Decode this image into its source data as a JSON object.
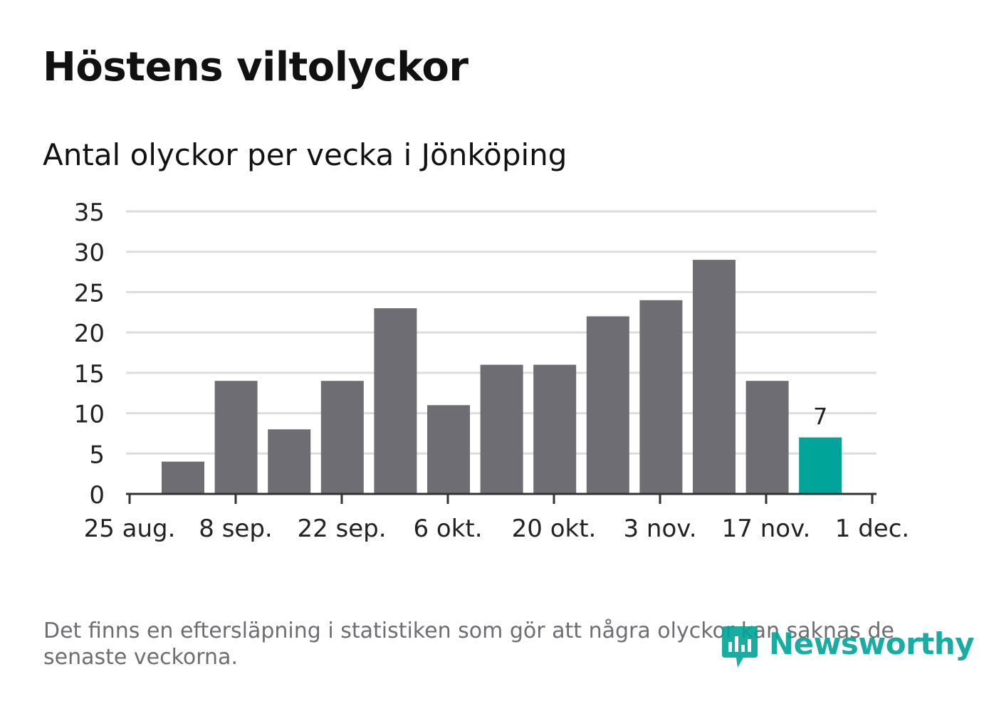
{
  "header": {
    "title": "Höstens viltolyckor",
    "subtitle": "Antal olyckor per vecka i Jönköping"
  },
  "footer": {
    "note": "Det finns en eftersläpning i statistiken som gör att några olyckor kan saknas de senaste veckorna.",
    "logo_text": "Newsworthy"
  },
  "colors": {
    "bar": "#6e6d73",
    "highlight": "#00a498",
    "grid": "#dddddd",
    "axis": "#333333",
    "text": "#222222"
  },
  "chart_data": {
    "type": "bar",
    "title": "Antal olyckor per vecka i Jönköping",
    "xlabel": "",
    "ylabel": "",
    "ylim": [
      0,
      35
    ],
    "yticks": [
      "0",
      "5",
      "10",
      "15",
      "20",
      "25",
      "30",
      "35"
    ],
    "xticks": [
      "25 aug.",
      "8 sep.",
      "22 sep.",
      "6 okt.",
      "20 okt.",
      "3 nov.",
      "17 nov.",
      "1 dec."
    ],
    "values": [
      4,
      14,
      8,
      14,
      23,
      11,
      16,
      16,
      22,
      24,
      29,
      14,
      7
    ],
    "highlight_index": 12,
    "data_labels": [
      {
        "index": 12,
        "text": "7"
      }
    ],
    "grid": true
  }
}
